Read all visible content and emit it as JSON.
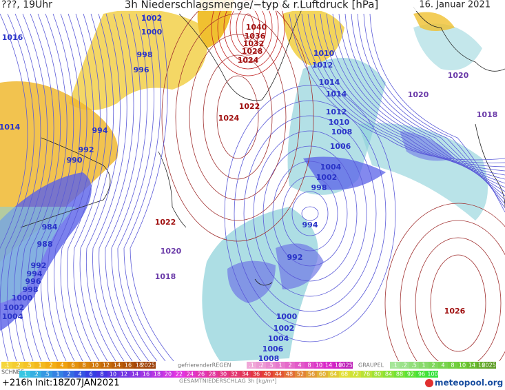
{
  "header": {
    "left": "???, 19Uhr",
    "title": "3h Niederschlagsmenge/−typ & r.Luftdruck [hPa]",
    "date": "16. Januar 2021"
  },
  "isobar_labels": [
    1016,
    1014,
    1002,
    1000,
    998,
    996,
    994,
    992,
    990,
    1040,
    1036,
    1032,
    1028,
    1024,
    1022,
    1024,
    1010,
    1012,
    1014,
    1014,
    1012,
    1010,
    1008,
    1006,
    1004,
    1002,
    998,
    994,
    1022,
    1020,
    1018,
    992,
    1020,
    1020,
    1018,
    1026,
    1000,
    1002,
    1004,
    1006,
    1008,
    984,
    988,
    992,
    994,
    996,
    998,
    1000,
    1002,
    1004
  ],
  "legend": {
    "snow_label": "SCHNEE",
    "snow_scale": [
      ".1",
      ".2",
      ".5",
      "1",
      "2",
      "4",
      "6",
      "8",
      "10",
      "12",
      "14",
      "16",
      "18",
      "2025+"
    ],
    "freezing_rain_label": "gefrierenderREGEN",
    "freezing_rain_scale": [
      ".1",
      ".2",
      ".5",
      "1",
      "2",
      "4",
      "8",
      "10",
      "14",
      "16",
      "2025+"
    ],
    "graupel_label": "GRAUPEL",
    "graupel_scale": [
      ".1",
      ".2",
      ".5",
      "1",
      "2",
      "4",
      "8",
      "10",
      "14",
      "16",
      "2025+"
    ],
    "total_scale": [
      ".1",
      ".2",
      ".5",
      "1",
      "2",
      "4",
      "6",
      "8",
      "10",
      "12",
      "14",
      "16",
      "18",
      "20",
      "22",
      "24",
      "26",
      "28",
      "30",
      "32",
      "34",
      "36",
      "40",
      "44",
      "48",
      "52",
      "56",
      "60",
      "64",
      "68",
      "72",
      "76",
      "80",
      "84",
      "88",
      "92",
      "96",
      "100"
    ],
    "total_label": "GESAMTNIEDERSCHLAG 3h [kg/m²]"
  },
  "footer": {
    "run": "+216h Init:18Z07JAN2021",
    "brand": "meteopool.org"
  }
}
